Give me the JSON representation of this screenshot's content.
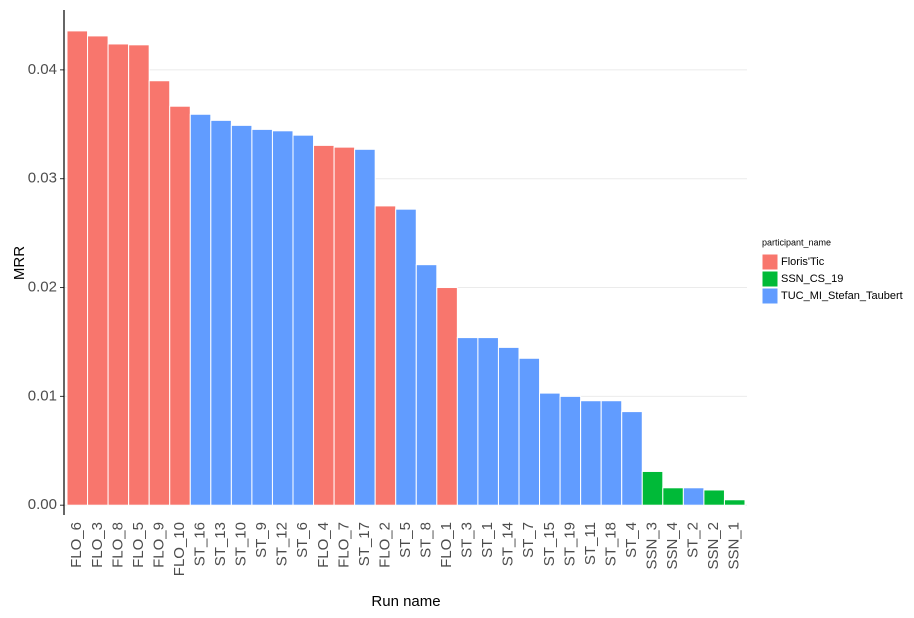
{
  "chart_data": {
    "type": "bar",
    "x_label": "Run name",
    "y_label": "MRR",
    "legend_title": "participant_name",
    "categories": [
      "FLO_6",
      "FLO_3",
      "FLO_8",
      "FLO_5",
      "FLO_9",
      "FLO_10",
      "ST_16",
      "ST_13",
      "ST_10",
      "ST_9",
      "ST_12",
      "ST_6",
      "FLO_4",
      "FLO_7",
      "ST_17",
      "FLO_2",
      "ST_5",
      "ST_8",
      "FLO_1",
      "ST_3",
      "ST_1",
      "ST_14",
      "ST_7",
      "ST_15",
      "ST_19",
      "ST_11",
      "ST_18",
      "ST_4",
      "SSN_3",
      "SSN_4",
      "ST_2",
      "SSN_2",
      "SSN_1"
    ],
    "series": [
      {
        "name": "Floris'Tic",
        "color": "#F8766D",
        "values": [
          0.04358,
          0.04312,
          0.04238,
          0.0423,
          0.039,
          0.03666,
          null,
          null,
          null,
          null,
          null,
          null,
          0.03306,
          0.0329,
          null,
          0.0275,
          null,
          null,
          0.02,
          null,
          null,
          null,
          null,
          null,
          null,
          null,
          null,
          null,
          null,
          null,
          null,
          null,
          null
        ]
      },
      {
        "name": "SSN_CS_19",
        "color": "#00BA38",
        "values": [
          null,
          null,
          null,
          null,
          null,
          null,
          null,
          null,
          null,
          null,
          null,
          null,
          null,
          null,
          null,
          null,
          null,
          null,
          null,
          null,
          null,
          null,
          null,
          null,
          null,
          null,
          null,
          null,
          0.0031,
          0.0016,
          null,
          0.0014,
          0.0005
        ]
      },
      {
        "name": "TUC_MI_Stefan_Taubert",
        "color": "#619CFF",
        "values": [
          null,
          null,
          null,
          null,
          null,
          null,
          0.03592,
          0.03536,
          0.0349,
          0.03453,
          0.0344,
          0.034,
          null,
          null,
          0.0327,
          null,
          0.0272,
          0.0221,
          null,
          0.0154,
          0.0154,
          0.0145,
          0.0135,
          0.0103,
          0.01,
          0.0096,
          0.0096,
          0.0086,
          null,
          null,
          0.0016,
          null,
          null
        ]
      }
    ],
    "ylim": [
      -0.0009,
      0.0455
    ],
    "yticks": [
      {
        "value": 0,
        "label": "0.00"
      },
      0.01,
      0.02,
      0.03,
      0.04
    ],
    "grid": true
  }
}
